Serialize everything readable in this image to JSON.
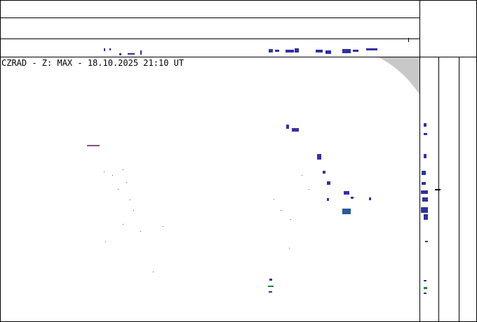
{
  "header": {
    "title": "CZRAD - Z: MAX - 18.10.2025 21:10 UT"
  }
}
